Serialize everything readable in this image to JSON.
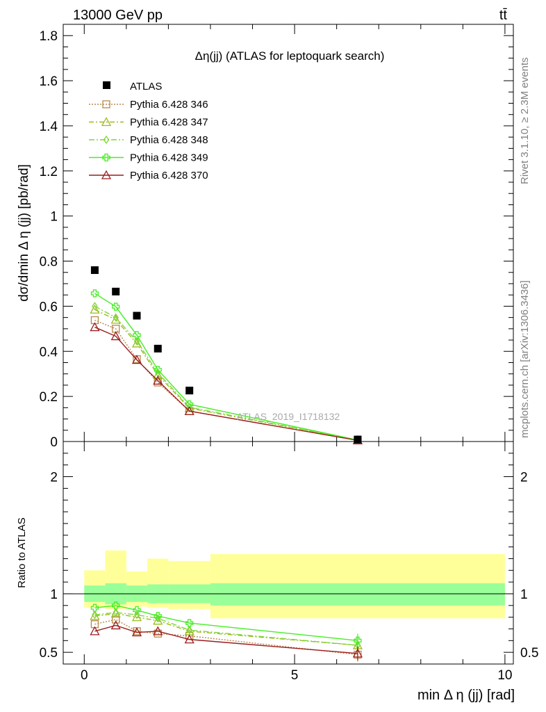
{
  "header": {
    "left": "13000 GeV pp",
    "right": "tt̄"
  },
  "side": {
    "rivet": "Rivet 3.1.10, ≥ 2.3M events",
    "mcplots": "mcplots.cern.ch [arXiv:1306.3436]"
  },
  "chart_data": [
    {
      "type": "line",
      "title": "Δη(jj) (ATLAS for leptoquark search)",
      "ylabel": "dσ/dmin Δ η (jj) [pb/rad]",
      "xlabel": "min Δ η (jj) [rad]",
      "watermark": "ATLAS_2019_I1718132",
      "xlim": [
        -0.5,
        10.2
      ],
      "ylim": [
        0,
        1.85
      ],
      "yticks": [
        {
          "v": 0,
          "label": "0"
        },
        {
          "v": 0.2,
          "label": "0.2"
        },
        {
          "v": 0.4,
          "label": "0.4"
        },
        {
          "v": 0.6,
          "label": "0.6"
        },
        {
          "v": 0.8,
          "label": "0.8"
        },
        {
          "v": 1.0,
          "label": "1"
        },
        {
          "v": 1.2,
          "label": "1.2"
        },
        {
          "v": 1.4,
          "label": "1.4"
        },
        {
          "v": 1.6,
          "label": "1.6"
        },
        {
          "v": 1.8,
          "label": "1.8"
        }
      ],
      "x": [
        0.25,
        0.75,
        1.25,
        1.75,
        2.5,
        6.5
      ],
      "data": {
        "name": "ATLAS",
        "values": [
          0.76,
          0.665,
          0.558,
          0.412,
          0.226,
          0.009
        ]
      },
      "series": [
        {
          "name": "Pythia 6.428 346",
          "color": "#b8874a",
          "dash": "2,2",
          "marker": "square",
          "values": [
            0.538,
            0.5,
            0.365,
            0.262,
            0.135,
            0.005
          ]
        },
        {
          "name": "Pythia 6.428 347",
          "color": "#9bbb1e",
          "dash": "7,3,2,3",
          "marker": "triangle",
          "values": [
            0.585,
            0.54,
            0.435,
            0.295,
            0.148,
            0.006
          ]
        },
        {
          "name": "Pythia 6.428 348",
          "color": "#7fd63a",
          "dash": "8,3,2,3",
          "marker": "diamond",
          "values": [
            0.6,
            0.55,
            0.445,
            0.305,
            0.152,
            0.006
          ]
        },
        {
          "name": "Pythia 6.428 349",
          "color": "#44ee22",
          "dash": "",
          "marker": "cross",
          "values": [
            0.657,
            0.598,
            0.472,
            0.318,
            0.165,
            0.0065
          ]
        },
        {
          "name": "Pythia 6.428 370",
          "color": "#9b1c1c",
          "dash": "",
          "marker": "triangle",
          "values": [
            0.507,
            0.467,
            0.362,
            0.27,
            0.135,
            0.005
          ]
        }
      ]
    },
    {
      "type": "line",
      "ylabel": "Ratio to ATLAS",
      "xlabel": "min Δ η (jj) [rad]",
      "xlim": [
        -0.5,
        10.2
      ],
      "ylim": [
        0.4,
        2.3
      ],
      "xticks": [
        {
          "v": 0,
          "label": "0"
        },
        {
          "v": 5,
          "label": "5"
        },
        {
          "v": 10,
          "label": "10"
        }
      ],
      "yticks": [
        {
          "v": 0.5,
          "label": "0.5"
        },
        {
          "v": 1,
          "label": "1"
        },
        {
          "v": 2,
          "label": "2"
        }
      ],
      "bins": [
        [
          0,
          0.5
        ],
        [
          0.5,
          1.0
        ],
        [
          1.0,
          1.5
        ],
        [
          1.5,
          2.0
        ],
        [
          2.0,
          3.0
        ],
        [
          3.0,
          10.0
        ]
      ],
      "band_inner": [
        [
          0.93,
          1.07
        ],
        [
          0.91,
          1.09
        ],
        [
          0.93,
          1.07
        ],
        [
          0.92,
          1.08
        ],
        [
          0.92,
          1.08
        ],
        [
          0.9,
          1.09
        ]
      ],
      "band_outer": [
        [
          0.88,
          1.2
        ],
        [
          0.87,
          1.37
        ],
        [
          0.89,
          1.19
        ],
        [
          0.88,
          1.3
        ],
        [
          0.87,
          1.28
        ],
        [
          0.79,
          1.34
        ]
      ],
      "x": [
        0.25,
        0.75,
        1.25,
        1.75,
        2.5,
        6.5
      ],
      "series": [
        {
          "name": "Pythia 6.428 346",
          "values": [
            0.74,
            0.78,
            0.68,
            0.66,
            0.64,
            0.48
          ]
        },
        {
          "name": "Pythia 6.428 347",
          "values": [
            0.81,
            0.83,
            0.8,
            0.77,
            0.68,
            0.56
          ]
        },
        {
          "name": "Pythia 6.428 348",
          "values": [
            0.82,
            0.84,
            0.82,
            0.79,
            0.69,
            0.56
          ]
        },
        {
          "name": "Pythia 6.428 349",
          "values": [
            0.88,
            0.9,
            0.86,
            0.81,
            0.75,
            0.6
          ]
        },
        {
          "name": "Pythia 6.428 370",
          "values": [
            0.68,
            0.73,
            0.67,
            0.68,
            0.61,
            0.49
          ]
        }
      ]
    }
  ]
}
